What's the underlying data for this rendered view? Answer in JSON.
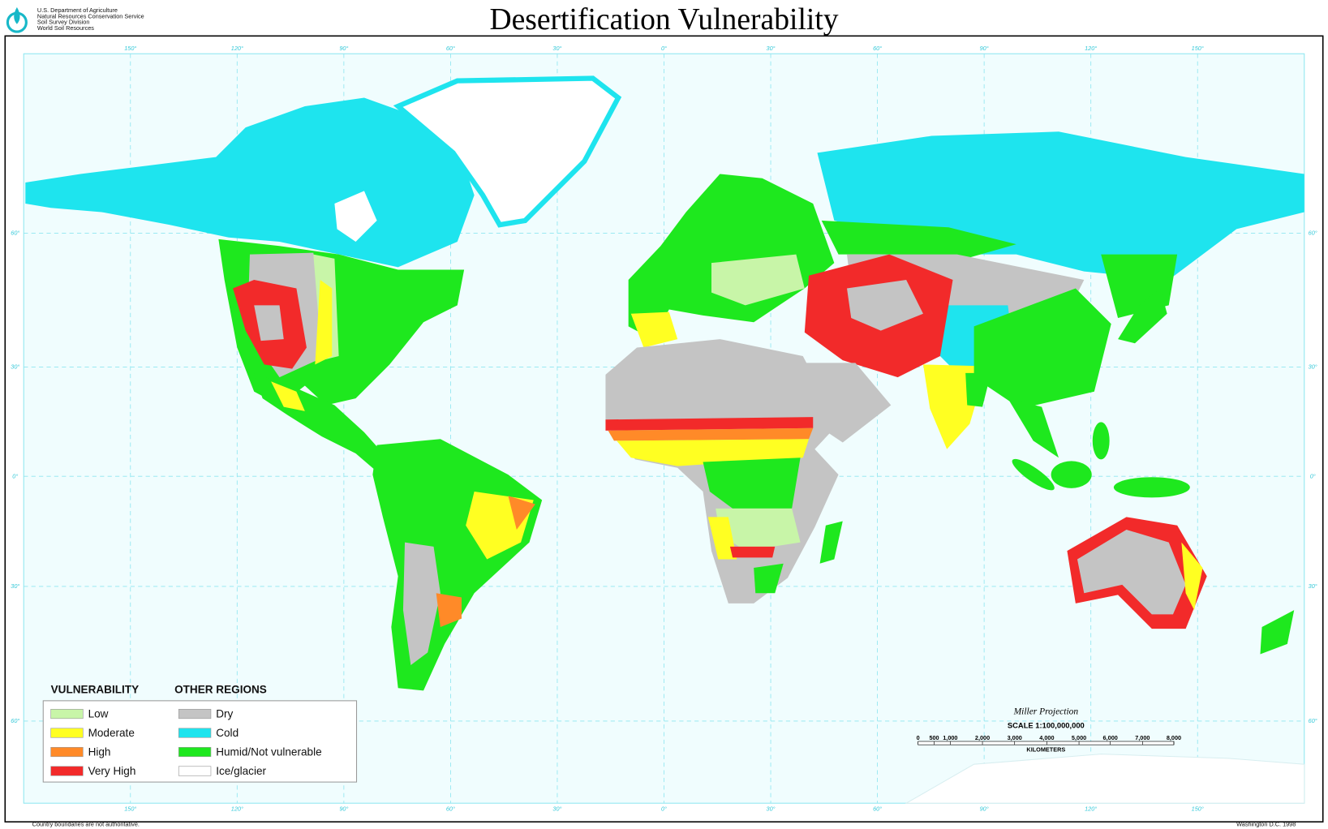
{
  "header": {
    "agency_lines": [
      "U.S. Department of Agriculture",
      "Natural Resources Conservation Service",
      "Soil Survey Division",
      "World Soil Resources"
    ],
    "title": "Desertification Vulnerability"
  },
  "graticule": {
    "longitudes": [
      "150°",
      "120°",
      "90°",
      "60°",
      "30°",
      "0°",
      "30°",
      "60°",
      "90°",
      "120°",
      "150°"
    ],
    "latitudes": [
      "60°",
      "30°",
      "0°",
      "30°",
      "60°"
    ]
  },
  "legend": {
    "vulnerability_title": "VULNERABILITY",
    "other_title": "OTHER REGIONS",
    "vulnerability": [
      {
        "label": "Low",
        "color": "#c8f5a8"
      },
      {
        "label": "Moderate",
        "color": "#ffff22"
      },
      {
        "label": "High",
        "color": "#ff8a28"
      },
      {
        "label": "Very High",
        "color": "#f22a2a"
      }
    ],
    "other": [
      {
        "label": "Dry",
        "color": "#c4c4c4"
      },
      {
        "label": "Cold",
        "color": "#1ee4ee"
      },
      {
        "label": "Humid/Not vulnerable",
        "color": "#1ee81e"
      },
      {
        "label": "Ice/glacier",
        "color": "#ffffff"
      }
    ]
  },
  "scale": {
    "projection": "Miller Projection",
    "ratio": "SCALE 1:100,000,000",
    "labels": [
      "0",
      "500",
      "1,000",
      "2,000",
      "3,000",
      "4,000",
      "5,000",
      "6,000",
      "7,000",
      "8,000"
    ],
    "unit": "KILOMETERS"
  },
  "footer": {
    "note": "Country boundaries are not authoritative.",
    "place_date": "Washington D.C. 1998"
  }
}
